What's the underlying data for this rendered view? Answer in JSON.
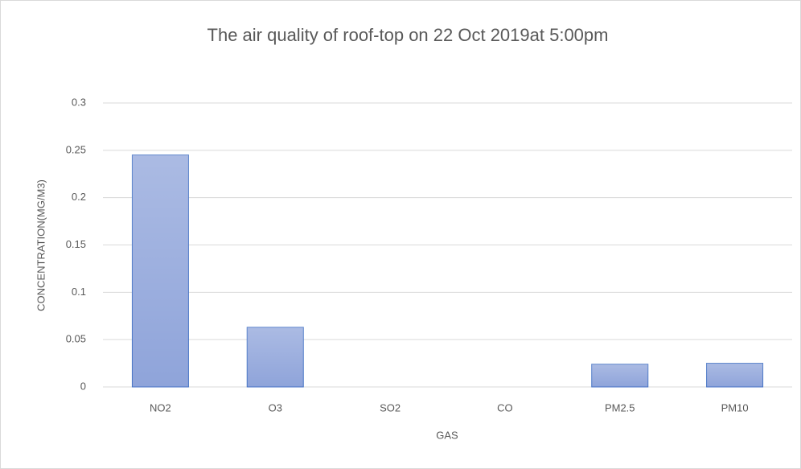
{
  "chart_data": {
    "type": "bar",
    "title": "The air quality  of roof-top on 22 Oct 2019at 5:00pm",
    "x_label": "GAS",
    "y_label": "CONCENTRATION(MG/M3)",
    "categories": [
      "NO2",
      "O3",
      "SO2",
      "CO",
      "PM2.5",
      "PM10"
    ],
    "values": [
      0.245,
      0.063,
      0,
      0,
      0.024,
      0.025
    ],
    "color": "#8fa4da",
    "edge_color": "#4472c4",
    "ylim": [
      0,
      0.3
    ],
    "yticks": [
      0,
      0.05,
      0.1,
      0.15,
      0.2,
      0.25,
      0.3
    ],
    "grid": true
  }
}
